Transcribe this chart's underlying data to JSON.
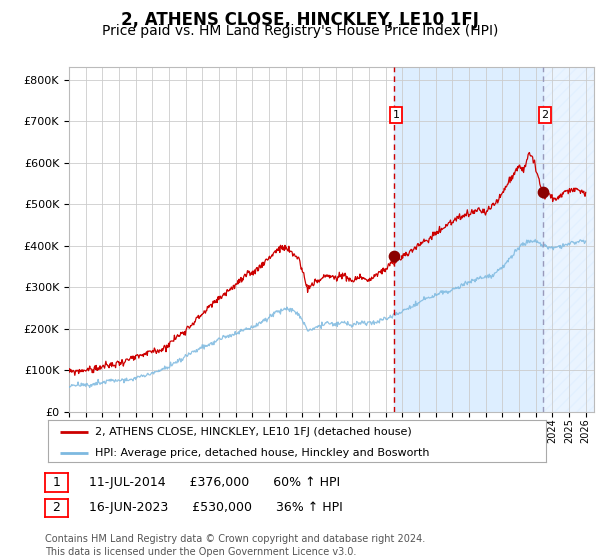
{
  "title": "2, ATHENS CLOSE, HINCKLEY, LE10 1FJ",
  "subtitle": "Price paid vs. HM Land Registry's House Price Index (HPI)",
  "title_fontsize": 12,
  "subtitle_fontsize": 10,
  "ylabel_ticks": [
    "£0",
    "£100K",
    "£200K",
    "£300K",
    "£400K",
    "£500K",
    "£600K",
    "£700K",
    "£800K"
  ],
  "ytick_values": [
    0,
    100000,
    200000,
    300000,
    400000,
    500000,
    600000,
    700000,
    800000
  ],
  "ylim": [
    0,
    830000
  ],
  "xlim_start": 1995.0,
  "xlim_end": 2026.5,
  "hpi_color": "#7db9e0",
  "price_color": "#cc0000",
  "purchase1_date": 2014.53,
  "purchase1_price": 376000,
  "purchase2_date": 2023.46,
  "purchase2_price": 530000,
  "vline1_color": "#cc0000",
  "vline2_color": "#9999bb",
  "shade_color": "#ddeeff",
  "legend_label1": "2, ATHENS CLOSE, HINCKLEY, LE10 1FJ (detached house)",
  "legend_label2": "HPI: Average price, detached house, Hinckley and Bosworth",
  "table_row1": [
    "1",
    "11-JUL-2014",
    "£376,000",
    "60% ↑ HPI"
  ],
  "table_row2": [
    "2",
    "16-JUN-2023",
    "£530,000",
    "36% ↑ HPI"
  ],
  "footer": "Contains HM Land Registry data © Crown copyright and database right 2024.\nThis data is licensed under the Open Government Licence v3.0.",
  "background_color": "#ffffff",
  "grid_color": "#cccccc"
}
